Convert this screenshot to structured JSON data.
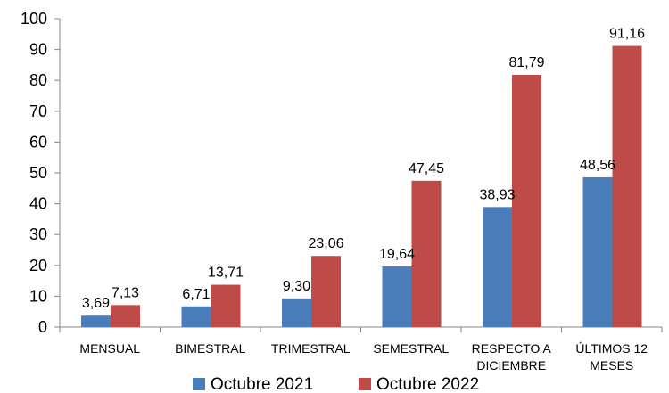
{
  "chart_data": {
    "type": "bar",
    "categories": [
      [
        "MENSUAL"
      ],
      [
        "BIMESTRAL"
      ],
      [
        "TRIMESTRAL"
      ],
      [
        "SEMESTRAL"
      ],
      [
        "RESPECTO A",
        "DICIEMBRE"
      ],
      [
        "ÚLTIMOS 12",
        "MESES"
      ]
    ],
    "series": [
      {
        "name": "Octubre 2021",
        "color": "#4a7ebb",
        "values": [
          3.69,
          6.71,
          9.3,
          19.64,
          38.93,
          48.56
        ],
        "labels": [
          "3,69",
          "6,71",
          "9,30",
          "19,64",
          "38,93",
          "48,56"
        ]
      },
      {
        "name": "Octubre 2022",
        "color": "#be4b48",
        "values": [
          7.13,
          13.71,
          23.06,
          47.45,
          81.79,
          91.16
        ],
        "labels": [
          "7,13",
          "13,71",
          "23,06",
          "47,45",
          "81,79",
          "91,16"
        ]
      }
    ],
    "ylim": [
      0,
      100
    ],
    "yticks": [
      0,
      10,
      20,
      30,
      40,
      50,
      60,
      70,
      80,
      90,
      100
    ],
    "grid": false,
    "legend": "bottom-center"
  }
}
